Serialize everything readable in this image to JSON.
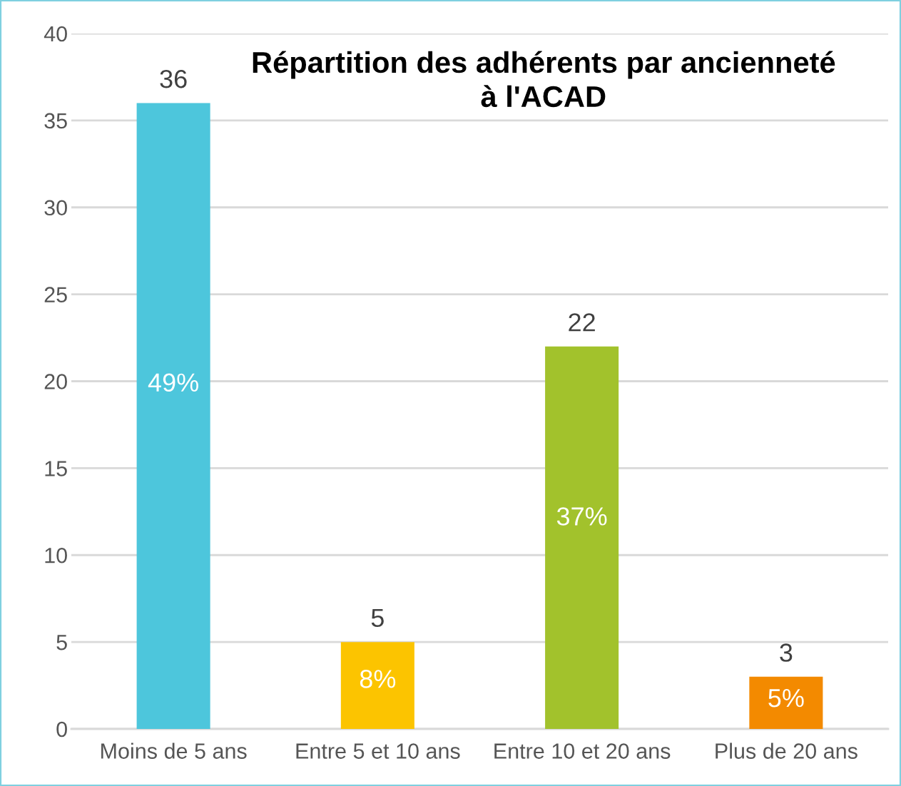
{
  "chart_data": {
    "type": "bar",
    "title": "Répartition des adhérents par ancienneté\nà l'ACAD",
    "categories": [
      "Moins de 5 ans",
      "Entre 5 et 10 ans",
      "Entre 10 et 20 ans",
      "Plus de 20 ans"
    ],
    "values": [
      36,
      5,
      22,
      3
    ],
    "colors": [
      "#4dc6dc",
      "#fcc400",
      "#a2c22c",
      "#f38a00"
    ],
    "ylim": [
      0,
      40
    ],
    "yticks": [
      0,
      5,
      10,
      15,
      20,
      25,
      30,
      35,
      40
    ],
    "grid": "y",
    "data_labels": true,
    "annotations": [
      "49%",
      "8%",
      "37%",
      "5%"
    ]
  }
}
